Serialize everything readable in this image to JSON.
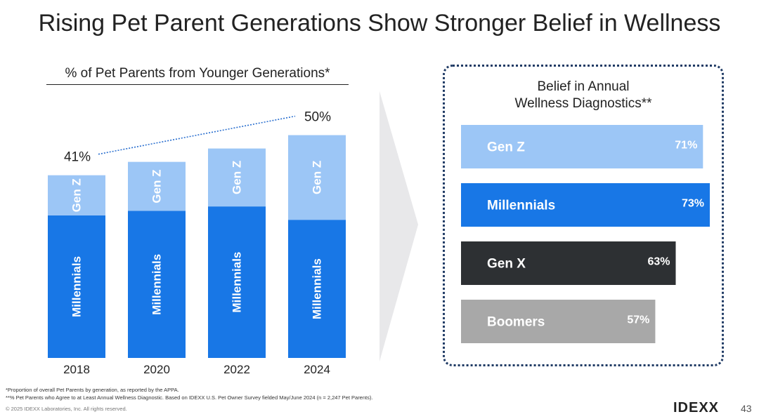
{
  "slide": {
    "title": "Rising Pet Parent Generations Show Stronger Belief in Wellness",
    "left_subtitle": "% of Pet Parents from Younger Generations*",
    "right_label_line1": "Belief in Annual",
    "right_label_line2": "Wellness Diagnostics**",
    "footnote1": "*Proportion of overall Pet Parents by generation, as reported by the APPA.",
    "footnote2": "**% Pet Parents who Agree to at Least Annual Wellness Diagnostic. Based on IDEXX U.S. Pet Owner Survey fielded May/June 2024 (n = 2,247 Pet Parents).",
    "copyright": "© 2025 IDEXX Laboratories, Inc. All rights reserved.",
    "logo_text": "IDEXX",
    "page_number": "43"
  },
  "colors": {
    "millennials": "#1877e6",
    "genz": "#9cc6f6",
    "genx": "#2d3033",
    "boomers": "#a8a8a8",
    "trend": "#2a6fcf"
  },
  "chart_data": [
    {
      "type": "bar",
      "stacked": true,
      "title": "% of Pet Parents from Younger Generations*",
      "categories": [
        "2018",
        "2020",
        "2022",
        "2024"
      ],
      "series": [
        {
          "name": "Millennials",
          "values": [
            32,
            33,
            34,
            31
          ]
        },
        {
          "name": "Gen Z",
          "values": [
            9,
            11,
            13,
            19
          ]
        }
      ],
      "totals": [
        41,
        44,
        47,
        50
      ],
      "annotations": [
        {
          "category": "2018",
          "text": "41%"
        },
        {
          "category": "2024",
          "text": "50%"
        }
      ],
      "ylim": [
        0,
        63
      ]
    },
    {
      "type": "bar",
      "orientation": "horizontal",
      "title": "Belief in Annual Wellness Diagnostics**",
      "categories": [
        "Gen Z",
        "Millennials",
        "Gen X",
        "Boomers"
      ],
      "values": [
        71,
        73,
        63,
        57
      ],
      "labels": [
        "71%",
        "73%",
        "63%",
        "57%"
      ],
      "xlim": [
        0,
        73
      ]
    }
  ]
}
